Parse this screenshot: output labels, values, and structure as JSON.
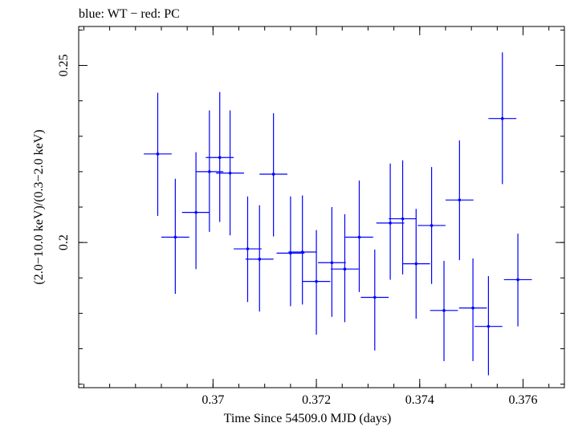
{
  "chart_data": {
    "type": "scatter",
    "title": "blue: WT − red: PC",
    "xlabel": "Time Since 54509.0 MJD (days)",
    "ylabel": "(2.0−10.0 keV)/(0.3−2.0 keV)",
    "xlim": [
      0.3674,
      0.3768
    ],
    "ylim": [
      0.159,
      0.261
    ],
    "x_ticks": [
      {
        "value": 0.37,
        "label": "0.37"
      },
      {
        "value": 0.372,
        "label": "0.372"
      },
      {
        "value": 0.374,
        "label": "0.374"
      },
      {
        "value": 0.376,
        "label": "0.376"
      }
    ],
    "y_ticks": [
      {
        "value": 0.2,
        "label": "0.2"
      },
      {
        "value": 0.25,
        "label": "0.25"
      }
    ],
    "x_minor_step": 0.0005,
    "y_minor_step": 0.01,
    "grid": false,
    "series": [
      {
        "color": "#0000ff",
        "points": [
          {
            "x": 0.36893,
            "y": 0.225,
            "xerr": 0.00027,
            "ylo": 0.2075,
            "yhi": 0.2423
          },
          {
            "x": 0.36927,
            "y": 0.2015,
            "xerr": 0.00027,
            "ylo": 0.1855,
            "yhi": 0.218
          },
          {
            "x": 0.36967,
            "y": 0.2085,
            "xerr": 0.00027,
            "ylo": 0.1925,
            "yhi": 0.2255
          },
          {
            "x": 0.36993,
            "y": 0.22,
            "xerr": 0.00027,
            "ylo": 0.203,
            "yhi": 0.2373
          },
          {
            "x": 0.37013,
            "y": 0.224,
            "xerr": 0.00027,
            "ylo": 0.2058,
            "yhi": 0.2425
          },
          {
            "x": 0.37033,
            "y": 0.2196,
            "xerr": 0.00027,
            "ylo": 0.202,
            "yhi": 0.2373
          },
          {
            "x": 0.37067,
            "y": 0.1982,
            "xerr": 0.00027,
            "ylo": 0.1832,
            "yhi": 0.213
          },
          {
            "x": 0.3709,
            "y": 0.1953,
            "xerr": 0.00027,
            "ylo": 0.1805,
            "yhi": 0.2105
          },
          {
            "x": 0.37117,
            "y": 0.2193,
            "xerr": 0.00027,
            "ylo": 0.2017,
            "yhi": 0.2365
          },
          {
            "x": 0.3715,
            "y": 0.197,
            "xerr": 0.00027,
            "ylo": 0.182,
            "yhi": 0.213
          },
          {
            "x": 0.37173,
            "y": 0.1973,
            "xerr": 0.00027,
            "ylo": 0.1825,
            "yhi": 0.2133
          },
          {
            "x": 0.372,
            "y": 0.189,
            "xerr": 0.00027,
            "ylo": 0.174,
            "yhi": 0.2035
          },
          {
            "x": 0.3723,
            "y": 0.1943,
            "xerr": 0.00027,
            "ylo": 0.179,
            "yhi": 0.21
          },
          {
            "x": 0.37255,
            "y": 0.1925,
            "xerr": 0.00027,
            "ylo": 0.1775,
            "yhi": 0.208
          },
          {
            "x": 0.37283,
            "y": 0.2015,
            "xerr": 0.00027,
            "ylo": 0.186,
            "yhi": 0.2175
          },
          {
            "x": 0.37313,
            "y": 0.1845,
            "xerr": 0.00027,
            "ylo": 0.1695,
            "yhi": 0.198
          },
          {
            "x": 0.37343,
            "y": 0.2055,
            "xerr": 0.00027,
            "ylo": 0.1895,
            "yhi": 0.2223
          },
          {
            "x": 0.37367,
            "y": 0.2067,
            "xerr": 0.00027,
            "ylo": 0.191,
            "yhi": 0.2232
          },
          {
            "x": 0.37393,
            "y": 0.194,
            "xerr": 0.00027,
            "ylo": 0.1785,
            "yhi": 0.2095
          },
          {
            "x": 0.37423,
            "y": 0.2048,
            "xerr": 0.00027,
            "ylo": 0.1883,
            "yhi": 0.2213
          },
          {
            "x": 0.37447,
            "y": 0.1808,
            "xerr": 0.00027,
            "ylo": 0.1665,
            "yhi": 0.1948
          },
          {
            "x": 0.37477,
            "y": 0.212,
            "xerr": 0.00027,
            "ylo": 0.195,
            "yhi": 0.2288
          },
          {
            "x": 0.37503,
            "y": 0.1815,
            "xerr": 0.00027,
            "ylo": 0.1665,
            "yhi": 0.1955
          },
          {
            "x": 0.37533,
            "y": 0.1763,
            "xerr": 0.00027,
            "ylo": 0.1625,
            "yhi": 0.1905
          },
          {
            "x": 0.3756,
            "y": 0.235,
            "xerr": 0.00027,
            "ylo": 0.2165,
            "yhi": 0.2537
          },
          {
            "x": 0.3759,
            "y": 0.1895,
            "xerr": 0.00027,
            "ylo": 0.1763,
            "yhi": 0.2025
          }
        ]
      }
    ]
  }
}
